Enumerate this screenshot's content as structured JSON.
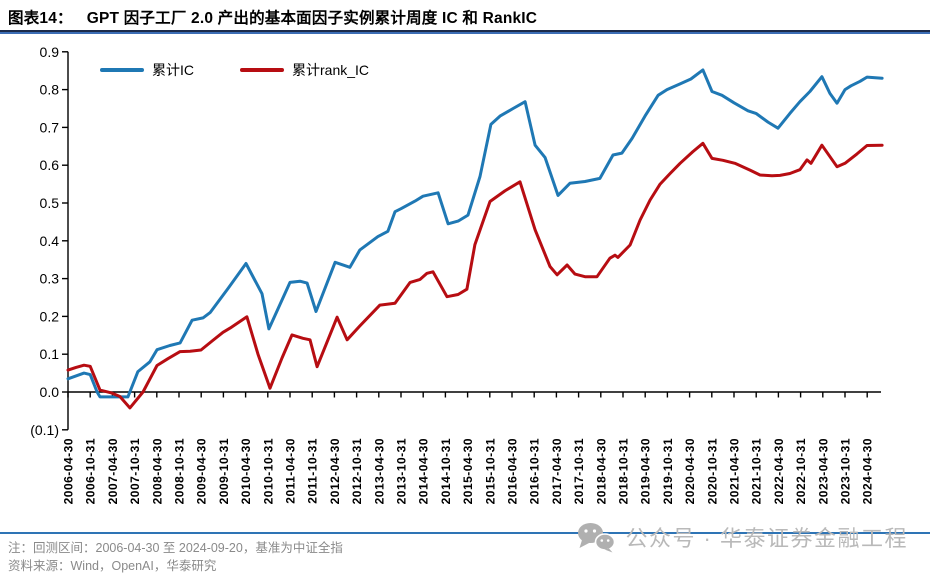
{
  "figure": {
    "label": "图表14：",
    "title": "GPT 因子工厂 2.0 产出的基本面因子实例累计周度 IC 和 RankIC"
  },
  "chart_data": {
    "type": "line",
    "title": "GPT 因子工厂 2.0 产出的基本面因子实例累计周度 IC 和 RankIC",
    "xlabel": "",
    "ylabel": "",
    "ylim": [
      -0.1,
      0.9
    ],
    "grid": false,
    "legend_position": "top-left-inset",
    "y_tick_values": [
      0.9,
      0.8,
      0.7,
      0.6,
      0.5,
      0.4,
      0.3,
      0.2,
      0.1,
      0.0,
      -0.1
    ],
    "y_tick_labels": [
      "0.9",
      "0.8",
      "0.7",
      "0.6",
      "0.5",
      "0.4",
      "0.3",
      "0.2",
      "0.1",
      "0.0",
      "(0.1)"
    ],
    "x_tick_labels": [
      "2006-04-30",
      "2006-10-31",
      "2007-04-30",
      "2007-10-31",
      "2008-04-30",
      "2008-10-31",
      "2009-04-30",
      "2009-10-31",
      "2010-04-30",
      "2010-10-31",
      "2011-04-30",
      "2011-10-31",
      "2012-04-30",
      "2012-10-31",
      "2013-04-30",
      "2013-10-31",
      "2014-04-30",
      "2014-10-31",
      "2015-04-30",
      "2015-10-31",
      "2016-04-30",
      "2016-10-31",
      "2017-04-30",
      "2017-10-31",
      "2018-04-30",
      "2018-10-31",
      "2019-04-30",
      "2019-10-31",
      "2020-04-30",
      "2020-10-31",
      "2021-04-30",
      "2021-10-31",
      "2022-04-30",
      "2022-10-31",
      "2023-04-30",
      "2023-10-31",
      "2024-04-30"
    ],
    "series": [
      {
        "name": "累计IC",
        "color": "#1f78b4",
        "points": [
          [
            0,
            0.035
          ],
          [
            0.72,
            0.05
          ],
          [
            1,
            0.046
          ],
          [
            1.31,
            0.0
          ],
          [
            1.44,
            -0.013
          ],
          [
            2.7,
            -0.013
          ],
          [
            3.15,
            0.054
          ],
          [
            3.69,
            0.08
          ],
          [
            4.01,
            0.112
          ],
          [
            4.59,
            0.123
          ],
          [
            5.05,
            0.13
          ],
          [
            5.59,
            0.19
          ],
          [
            6.08,
            0.196
          ],
          [
            6.4,
            0.21
          ],
          [
            7.21,
            0.274
          ],
          [
            8.02,
            0.34
          ],
          [
            8.74,
            0.26
          ],
          [
            9.05,
            0.167
          ],
          [
            10,
            0.29
          ],
          [
            10.45,
            0.293
          ],
          [
            10.77,
            0.288
          ],
          [
            11.17,
            0.213
          ],
          [
            12.03,
            0.343
          ],
          [
            12.7,
            0.33
          ],
          [
            13.15,
            0.376
          ],
          [
            13.96,
            0.411
          ],
          [
            14.41,
            0.425
          ],
          [
            14.73,
            0.477
          ],
          [
            15,
            0.485
          ],
          [
            15.63,
            0.505
          ],
          [
            15.99,
            0.518
          ],
          [
            16.67,
            0.527
          ],
          [
            17.12,
            0.445
          ],
          [
            17.57,
            0.452
          ],
          [
            18.02,
            0.468
          ],
          [
            18.56,
            0.57
          ],
          [
            19.05,
            0.708
          ],
          [
            19.46,
            0.73
          ],
          [
            20.05,
            0.75
          ],
          [
            20.59,
            0.768
          ],
          [
            21.04,
            0.653
          ],
          [
            21.49,
            0.62
          ],
          [
            22.07,
            0.52
          ],
          [
            22.61,
            0.552
          ],
          [
            23.29,
            0.557
          ],
          [
            23.96,
            0.565
          ],
          [
            24.55,
            0.627
          ],
          [
            24.95,
            0.632
          ],
          [
            25.41,
            0.671
          ],
          [
            25.99,
            0.73
          ],
          [
            26.58,
            0.785
          ],
          [
            26.98,
            0.8
          ],
          [
            27.57,
            0.815
          ],
          [
            28.06,
            0.828
          ],
          [
            28.6,
            0.852
          ],
          [
            29.01,
            0.795
          ],
          [
            29.46,
            0.785
          ],
          [
            30,
            0.765
          ],
          [
            30.63,
            0.744
          ],
          [
            30.99,
            0.737
          ],
          [
            31.53,
            0.714
          ],
          [
            31.98,
            0.698
          ],
          [
            32.52,
            0.737
          ],
          [
            32.97,
            0.768
          ],
          [
            33.42,
            0.795
          ],
          [
            33.96,
            0.834
          ],
          [
            34.32,
            0.79
          ],
          [
            34.64,
            0.764
          ],
          [
            35,
            0.8
          ],
          [
            35.27,
            0.81
          ],
          [
            35.68,
            0.822
          ],
          [
            35.99,
            0.833
          ],
          [
            36.67,
            0.83
          ]
        ]
      },
      {
        "name": "累计rank_IC",
        "color": "#b70d12",
        "points": [
          [
            0,
            0.058
          ],
          [
            0.36,
            0.065
          ],
          [
            0.72,
            0.071
          ],
          [
            1,
            0.068
          ],
          [
            1.44,
            0.005
          ],
          [
            1.98,
            -0.003
          ],
          [
            2.34,
            -0.012
          ],
          [
            2.79,
            -0.042
          ],
          [
            3.38,
            0.0
          ],
          [
            4.01,
            0.07
          ],
          [
            4.5,
            0.088
          ],
          [
            5.05,
            0.107
          ],
          [
            5.5,
            0.108
          ],
          [
            5.99,
            0.111
          ],
          [
            6.49,
            0.135
          ],
          [
            6.98,
            0.158
          ],
          [
            7.3,
            0.169
          ],
          [
            8.06,
            0.199
          ],
          [
            8.56,
            0.1
          ],
          [
            9.1,
            0.01
          ],
          [
            9.64,
            0.09
          ],
          [
            10.09,
            0.151
          ],
          [
            10.58,
            0.142
          ],
          [
            10.9,
            0.138
          ],
          [
            11.22,
            0.067
          ],
          [
            12.12,
            0.198
          ],
          [
            12.57,
            0.138
          ],
          [
            13.15,
            0.175
          ],
          [
            14.05,
            0.23
          ],
          [
            14.73,
            0.235
          ],
          [
            15.41,
            0.29
          ],
          [
            15.86,
            0.298
          ],
          [
            16.17,
            0.314
          ],
          [
            16.44,
            0.318
          ],
          [
            17.07,
            0.252
          ],
          [
            17.57,
            0.258
          ],
          [
            17.97,
            0.272
          ],
          [
            18.33,
            0.39
          ],
          [
            19.01,
            0.504
          ],
          [
            19.68,
            0.532
          ],
          [
            20.36,
            0.556
          ],
          [
            21.04,
            0.429
          ],
          [
            21.71,
            0.332
          ],
          [
            22.03,
            0.31
          ],
          [
            22.48,
            0.336
          ],
          [
            22.84,
            0.312
          ],
          [
            23.29,
            0.305
          ],
          [
            23.83,
            0.305
          ],
          [
            24.41,
            0.354
          ],
          [
            24.64,
            0.362
          ],
          [
            24.77,
            0.356
          ],
          [
            25.32,
            0.389
          ],
          [
            25.77,
            0.455
          ],
          [
            26.22,
            0.508
          ],
          [
            26.67,
            0.55
          ],
          [
            27.12,
            0.578
          ],
          [
            27.57,
            0.605
          ],
          [
            28.15,
            0.636
          ],
          [
            28.6,
            0.658
          ],
          [
            29.01,
            0.618
          ],
          [
            29.5,
            0.613
          ],
          [
            30.04,
            0.605
          ],
          [
            30.72,
            0.587
          ],
          [
            31.17,
            0.574
          ],
          [
            31.71,
            0.572
          ],
          [
            32.07,
            0.573
          ],
          [
            32.52,
            0.578
          ],
          [
            32.97,
            0.588
          ],
          [
            33.29,
            0.614
          ],
          [
            33.47,
            0.605
          ],
          [
            33.96,
            0.653
          ],
          [
            34.64,
            0.596
          ],
          [
            35,
            0.605
          ],
          [
            35.54,
            0.63
          ],
          [
            35.99,
            0.652
          ],
          [
            36.67,
            0.653
          ]
        ]
      }
    ]
  },
  "notes": {
    "line1": "注：回测区间：2006-04-30 至 2024-09-20，基准为中证全指",
    "line2": "资料来源：Wind，OpenAI，华泰研究"
  },
  "watermark": {
    "text": "公众号 · 华泰证券金融工程",
    "icon": "wechat-icon",
    "color": "#b9b9b9"
  },
  "style": {
    "accent_blue": "#2e74b5",
    "rule_dark": "#1c2b4a",
    "axis_color": "#000000"
  }
}
